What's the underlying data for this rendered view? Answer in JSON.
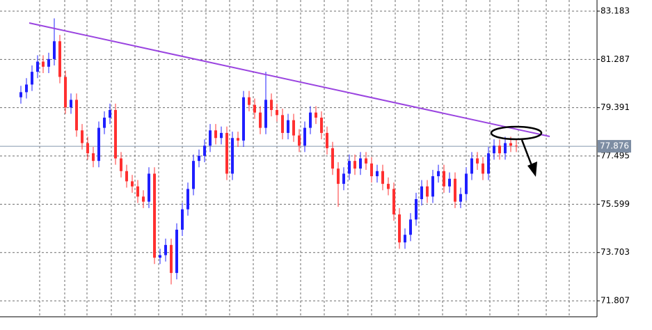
{
  "chart_data": {
    "type": "candlestick",
    "ylim": [
      71.18,
      83.62
    ],
    "yticks": [
      83.183,
      81.287,
      79.391,
      77.495,
      75.599,
      73.703,
      71.807
    ],
    "grid": true,
    "up_color": "#1f1fff",
    "down_color": "#ff3030",
    "last_price": 77.876,
    "open": [
      79.8,
      80.0,
      80.3,
      80.8,
      81.2,
      81.0,
      81.3,
      82.0,
      80.6,
      79.4,
      79.7,
      78.5,
      78.0,
      77.6,
      77.3,
      78.6,
      79.0,
      79.3,
      77.4,
      76.9,
      76.5,
      76.3,
      75.9,
      75.7,
      76.8,
      73.5,
      73.6,
      74.0,
      72.9,
      74.6,
      75.4,
      76.2,
      77.3,
      77.5,
      77.9,
      78.5,
      78.2,
      78.4,
      76.8,
      78.2,
      78.1,
      79.8,
      79.5,
      79.2,
      78.6,
      79.7,
      79.3,
      79.1,
      78.4,
      78.9,
      78.3,
      77.9,
      78.6,
      79.2,
      79.0,
      78.4,
      77.8,
      77.0,
      76.4,
      76.8,
      77.3,
      77.0,
      77.4,
      77.2,
      76.7,
      76.9,
      76.4,
      76.2,
      75.2,
      74.1,
      74.4,
      75.0,
      75.8,
      76.3,
      75.9,
      76.7,
      76.9,
      76.3,
      76.6,
      75.7,
      76.0,
      76.8,
      77.4,
      77.2,
      76.8,
      77.6,
      77.9,
      77.6,
      78.0,
      77.9
    ],
    "high": [
      80.25,
      80.55,
      81.05,
      81.45,
      81.45,
      81.55,
      82.9,
      82.25,
      80.85,
      79.95,
      79.95,
      78.75,
      78.25,
      77.85,
      78.85,
      79.25,
      79.55,
      79.55,
      77.65,
      77.15,
      76.75,
      76.55,
      76.15,
      77.05,
      77.05,
      73.85,
      74.25,
      74.25,
      74.85,
      75.65,
      76.45,
      77.55,
      77.75,
      78.15,
      78.75,
      78.75,
      78.65,
      78.65,
      78.45,
      78.45,
      80.05,
      80.05,
      79.75,
      79.45,
      80.8,
      79.95,
      79.55,
      79.35,
      79.15,
      79.15,
      78.55,
      78.85,
      79.45,
      79.45,
      79.25,
      78.65,
      78.05,
      77.25,
      77.05,
      77.55,
      77.55,
      77.65,
      77.65,
      77.45,
      77.15,
      77.15,
      76.65,
      76.45,
      75.45,
      74.65,
      75.25,
      76.05,
      76.55,
      76.55,
      76.95,
      77.15,
      77.15,
      76.85,
      76.85,
      76.25,
      77.05,
      77.65,
      77.65,
      77.45,
      77.85,
      78.15,
      78.15,
      78.25,
      78.25,
      78.15
    ],
    "low": [
      79.55,
      79.75,
      80.05,
      80.55,
      80.75,
      80.75,
      81.05,
      80.35,
      79.15,
      79.15,
      78.25,
      77.75,
      77.35,
      77.05,
      77.05,
      78.35,
      78.75,
      77.15,
      76.65,
      76.25,
      76.05,
      75.65,
      75.45,
      75.45,
      73.25,
      73.25,
      73.35,
      72.45,
      72.65,
      74.35,
      75.15,
      75.95,
      77.05,
      77.25,
      77.65,
      77.95,
      77.95,
      76.55,
      76.55,
      77.85,
      77.85,
      79.25,
      78.95,
      78.35,
      78.35,
      79.05,
      78.85,
      78.15,
      78.15,
      78.05,
      77.65,
      77.65,
      78.35,
      78.75,
      78.15,
      77.55,
      76.75,
      75.5,
      76.15,
      76.55,
      76.75,
      76.75,
      76.95,
      76.45,
      76.45,
      76.15,
      75.95,
      74.95,
      73.85,
      73.85,
      74.15,
      74.75,
      75.55,
      75.65,
      75.65,
      76.45,
      76.05,
      76.05,
      75.45,
      75.45,
      75.75,
      76.55,
      76.95,
      76.55,
      76.55,
      77.35,
      77.35,
      77.35,
      77.65,
      77.65
    ],
    "close": [
      80.0,
      80.3,
      80.8,
      81.2,
      81.0,
      81.3,
      82.0,
      80.6,
      79.4,
      79.7,
      78.5,
      78.0,
      77.6,
      77.3,
      78.6,
      79.0,
      79.3,
      77.4,
      76.9,
      76.5,
      76.3,
      75.9,
      75.7,
      76.8,
      73.5,
      73.6,
      74.0,
      72.9,
      74.6,
      75.4,
      76.2,
      77.3,
      77.5,
      77.9,
      78.5,
      78.2,
      78.4,
      76.8,
      78.2,
      78.1,
      79.8,
      79.5,
      79.2,
      78.6,
      79.7,
      79.3,
      79.1,
      78.4,
      78.9,
      78.3,
      77.9,
      78.6,
      79.2,
      79.0,
      78.4,
      77.8,
      77.0,
      76.4,
      76.8,
      77.3,
      77.0,
      77.4,
      77.2,
      76.7,
      76.9,
      76.4,
      76.2,
      75.2,
      74.1,
      74.4,
      75.0,
      75.8,
      76.3,
      75.9,
      76.7,
      76.9,
      76.3,
      76.6,
      75.7,
      76.0,
      76.8,
      77.4,
      77.2,
      76.8,
      77.6,
      77.9,
      77.6,
      78.0,
      77.9,
      77.876
    ]
  }
}
